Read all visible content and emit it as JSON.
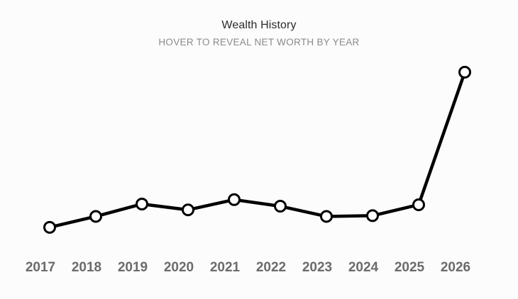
{
  "header": {
    "title": "Wealth History",
    "subtitle": "HOVER TO REVEAL NET WORTH BY YEAR"
  },
  "colors": {
    "line": "#000000",
    "point_fill": "#ffffff",
    "tick_text": "#6b6b6b",
    "subtitle_text": "#8a8a8a",
    "background": "#fcfcfc"
  },
  "chart_data": {
    "type": "line",
    "title": "Wealth History",
    "subtitle": "HOVER TO REVEAL NET WORTH BY YEAR",
    "categories": [
      "2017",
      "2018",
      "2019",
      "2020",
      "2021",
      "2022",
      "2023",
      "2024",
      "2025",
      "2026"
    ],
    "series": [
      {
        "values": [
          5,
          20,
          37,
          29,
          43,
          34,
          20,
          21,
          36,
          218
        ]
      }
    ],
    "xlabel": "",
    "ylabel": "",
    "ylim": [
      0,
      225
    ],
    "y_axis_visible": false,
    "grid": false,
    "legend": "none"
  }
}
